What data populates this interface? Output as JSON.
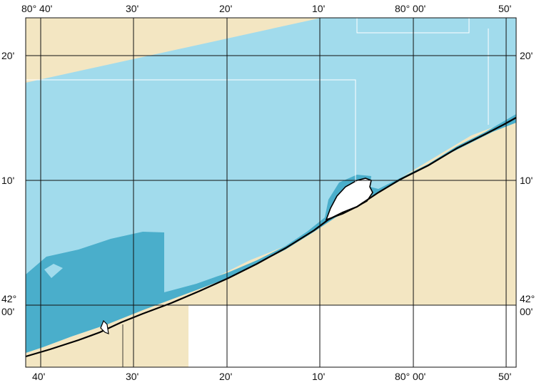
{
  "map": {
    "colors": {
      "deep_water": "#4aaecb",
      "shallow_water": "#a1dbec",
      "land": "#f3e6c2",
      "island": "#ffffff",
      "grid": "#111111",
      "coastline": "#000000"
    },
    "top_axis_labels": [
      "80° 40'",
      "30'",
      "20'",
      "10'",
      "80° 00'",
      "50'"
    ],
    "bottom_axis_labels": [
      "40'",
      "30'",
      "20'",
      "10'",
      "80° 00'",
      "50'"
    ],
    "lat_labels": {
      "twenty": "20'",
      "ten": "10'",
      "zero_deg": "42°",
      "zero_min": "00'"
    }
  }
}
